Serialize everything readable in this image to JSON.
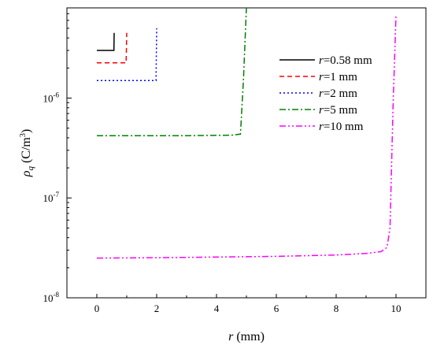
{
  "chart_data": {
    "type": "line",
    "xlabel": {
      "var": "r",
      "unit": " (mm)"
    },
    "ylabel": {
      "var": "ρ",
      "sub": "q",
      "unit_pre": " (C/m",
      "sup": "3",
      "unit_post": ")"
    },
    "xlim": [
      -1,
      11
    ],
    "ylim": [
      1e-08,
      8e-06
    ],
    "yscale": "log",
    "grid": false,
    "legend_position": "top-right",
    "x_ticks": [
      0,
      2,
      4,
      6,
      8,
      10
    ],
    "x_tick_labels": [
      "0",
      "2",
      "4",
      "6",
      "8",
      "10"
    ],
    "y_ticks": [
      1e-08,
      1e-07,
      1e-06
    ],
    "y_tick_labels": [
      {
        "base": "10",
        "exp": "-8"
      },
      {
        "base": "10",
        "exp": "-7"
      },
      {
        "base": "10",
        "exp": "-6"
      }
    ],
    "series": [
      {
        "name": {
          "var": "r",
          "text": "=0.58 mm"
        },
        "color": "#000000",
        "dash": "solid",
        "x": [
          0,
          0.57,
          0.58
        ],
        "y": [
          3e-06,
          3e-06,
          4.5e-06
        ]
      },
      {
        "name": {
          "var": "r",
          "text": "=1 mm"
        },
        "color": "#ff0000",
        "dash": "dash",
        "x": [
          0,
          0.98,
          1.0
        ],
        "y": [
          2.25e-06,
          2.25e-06,
          4.5e-06
        ]
      },
      {
        "name": {
          "var": "r",
          "text": "=2 mm"
        },
        "color": "#0000ff",
        "dash": "dot",
        "x": [
          0,
          1.98,
          2.0
        ],
        "y": [
          1.5e-06,
          1.5e-06,
          5e-06
        ]
      },
      {
        "name": {
          "var": "r",
          "text": "=5 mm"
        },
        "color": "#008000",
        "dash": "dashdot",
        "x": [
          0,
          3.0,
          4.5,
          4.8,
          4.9,
          5.0
        ],
        "y": [
          4.2e-07,
          4.2e-07,
          4.25e-07,
          4.35e-07,
          1.5e-06,
          8e-06
        ]
      },
      {
        "name": {
          "var": "r",
          "text": "=10 mm"
        },
        "color": "#ff00ff",
        "dash": "dashdotdot",
        "x": [
          0,
          2,
          4,
          6,
          8,
          9,
          9.5,
          9.7,
          9.8,
          9.9,
          10.0
        ],
        "y": [
          2.5e-08,
          2.52e-08,
          2.56e-08,
          2.6e-08,
          2.68e-08,
          2.78e-08,
          2.9e-08,
          3.2e-08,
          5e-08,
          8e-07,
          6.8e-06
        ]
      }
    ]
  }
}
